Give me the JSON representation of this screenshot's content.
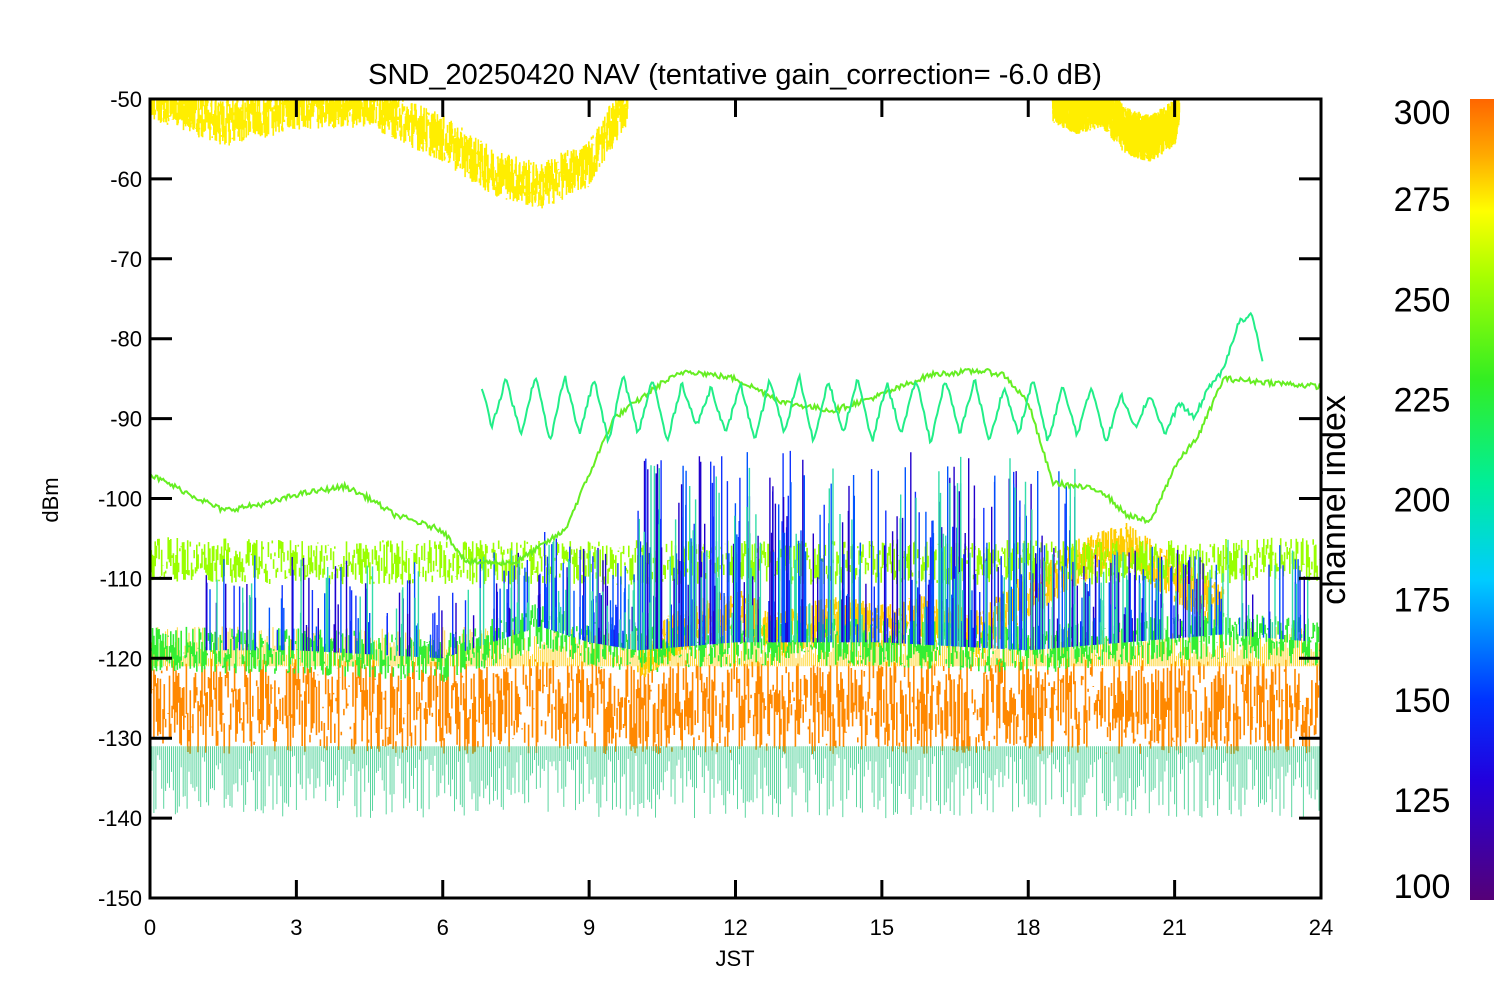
{
  "chart_data": {
    "type": "line",
    "title": "SND_20250420 NAV (tentative gain_correction= -6.0 dB)",
    "xlabel": "JST",
    "ylabel": "dBm",
    "xlim": [
      0,
      24
    ],
    "ylim": [
      -150,
      -50
    ],
    "xticks": [
      "0",
      "3",
      "6",
      "9",
      "12",
      "15",
      "18",
      "21",
      "24"
    ],
    "yticks": [
      "-50",
      "-60",
      "-70",
      "-80",
      "-90",
      "-100",
      "-110",
      "-120",
      "-130",
      "-140",
      "-150"
    ],
    "grid": false,
    "colorbar": {
      "label": "channel index",
      "range": [
        100,
        300
      ],
      "ticks": [
        "300",
        "275",
        "250",
        "225",
        "200",
        "175",
        "150",
        "125",
        "100"
      ]
    },
    "series": [
      {
        "channel": 290,
        "color": "#ff8800",
        "x": [
          0,
          3,
          6,
          9,
          12,
          15,
          18,
          21,
          24
        ],
        "y": [
          -126,
          -126,
          -126,
          -126,
          -126,
          -126,
          -126,
          -126,
          -126
        ]
      },
      {
        "channel": 280,
        "color": "#ffee00",
        "x": [
          0,
          1.5,
          3,
          4.5,
          6,
          7,
          8,
          9,
          9.4,
          9.8
        ],
        "y": [
          -49.5,
          -53,
          -51,
          -50.5,
          -55,
          -59,
          -61,
          -58,
          -54,
          -50
        ]
      },
      {
        "channel": 280,
        "color": "#ffee00",
        "x": [
          18.5,
          19,
          19.5,
          20,
          20.5,
          21,
          21.1
        ],
        "y": [
          -50,
          -51.5,
          -50.5,
          -54,
          -55,
          -53,
          -50
        ]
      },
      {
        "channel": 280,
        "color": "#ffcc00",
        "x": [
          10,
          11,
          12,
          13,
          14,
          15,
          16,
          17,
          18,
          19,
          20,
          21,
          22
        ],
        "y": [
          -120,
          -116,
          -114,
          -117,
          -115,
          -116,
          -115,
          -117,
          -112,
          -108,
          -106,
          -110,
          -114
        ]
      },
      {
        "channel": 260,
        "color": "#99ff00",
        "x": [
          0,
          3,
          6,
          9,
          12,
          15,
          18,
          21,
          24
        ],
        "y": [
          -107.5,
          -108,
          -108,
          -108,
          -108,
          -108,
          -108,
          -108,
          -107.5
        ]
      },
      {
        "channel": 245,
        "color": "#66ee22",
        "x": [
          0,
          1,
          1.5,
          2.5,
          3,
          4,
          4.5,
          5,
          6,
          6.5,
          7.5,
          8.5,
          9.5,
          10.5,
          11,
          12,
          13,
          14,
          15,
          16,
          17,
          17.5,
          18,
          18.5,
          19.5,
          20,
          20.5,
          21,
          21.5,
          22,
          23,
          24
        ],
        "y": [
          -97,
          -100,
          -101.5,
          -100.5,
          -99.5,
          -98.5,
          -100,
          -102,
          -104,
          -108,
          -108,
          -104,
          -90,
          -85.5,
          -84,
          -85,
          -88,
          -89,
          -87,
          -84.5,
          -84,
          -84.5,
          -88,
          -98,
          -99,
          -102,
          -103,
          -96,
          -92,
          -85,
          -85.5,
          -86
        ]
      },
      {
        "channel": 230,
        "color": "#33ee33",
        "x": [
          0,
          3,
          6,
          7,
          8,
          9,
          10,
          12,
          15,
          18,
          20,
          22,
          24
        ],
        "y": [
          -119,
          -119,
          -120,
          -118,
          -116,
          -118,
          -119,
          -118,
          -118,
          -119,
          -118,
          -117,
          -118
        ]
      },
      {
        "channel": 215,
        "color": "#22ee88",
        "x": [
          6.8,
          7.0,
          7.3,
          7.6,
          7.9,
          8.2,
          8.5,
          8.8,
          9.1,
          9.4,
          9.7,
          10.0,
          10.3,
          10.6,
          10.9,
          11.2,
          11.5,
          11.8,
          12.1,
          12.4,
          12.7,
          13.0,
          13.3,
          13.6,
          13.9,
          14.2,
          14.5,
          14.8,
          15.1,
          15.4,
          15.7,
          16.0,
          16.3,
          16.6,
          16.9,
          17.2,
          17.5,
          17.8,
          18.1,
          18.4,
          18.7,
          19.0,
          19.3,
          19.6,
          19.9,
          20.2,
          20.5,
          20.8,
          21.1,
          21.4,
          21.7,
          22.0,
          22.3,
          22.6,
          22.8
        ],
        "y": [
          -86,
          -91,
          -85,
          -92,
          -84.5,
          -93,
          -84.5,
          -92,
          -85,
          -93,
          -84.5,
          -92,
          -85,
          -93,
          -85.5,
          -91,
          -86,
          -92,
          -85.5,
          -93,
          -85,
          -92,
          -84.5,
          -93,
          -85,
          -92,
          -85,
          -93,
          -85.5,
          -92,
          -85,
          -93,
          -85,
          -92,
          -85,
          -93,
          -86,
          -92,
          -85,
          -93,
          -86,
          -92,
          -86,
          -93,
          -87,
          -91,
          -87,
          -92,
          -88,
          -90,
          -86,
          -84,
          -78,
          -77,
          -83
        ]
      }
    ]
  }
}
